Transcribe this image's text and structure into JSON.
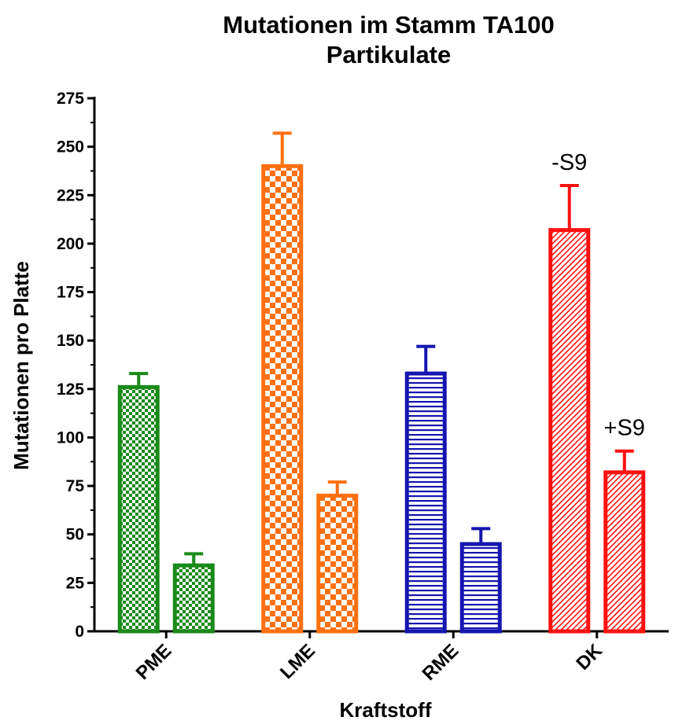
{
  "chart_data": {
    "type": "bar",
    "title": "Mutationen im Stamm TA100",
    "subtitle": "Partikulate",
    "xlabel": "Kraftstoff",
    "ylabel": "Mutationen pro Platte",
    "ylim": [
      0,
      275
    ],
    "yticks": [
      "0",
      "25",
      "50",
      "75",
      "100",
      "125",
      "150",
      "175",
      "200",
      "225",
      "250",
      "275"
    ],
    "categories": [
      "PME",
      "LME",
      "RME",
      "DK"
    ],
    "series": [
      {
        "name": "-S9",
        "values": [
          126,
          240,
          133,
          207
        ],
        "errors": [
          7,
          17,
          14,
          23
        ]
      },
      {
        "name": "+S9",
        "values": [
          34,
          70,
          45,
          82
        ],
        "errors": [
          6,
          7,
          8,
          11
        ]
      }
    ],
    "colors": [
      "#1a8a1a",
      "#ff7010",
      "#1515b0",
      "#ff1010"
    ],
    "patterns": [
      "checker-fine",
      "checker-coarse",
      "horizontal-lines",
      "diagonal-lines"
    ],
    "annotations": [
      {
        "text": "-S9",
        "category": "DK",
        "series": "-S9"
      },
      {
        "text": "+S9",
        "category": "DK",
        "series": "+S9"
      }
    ],
    "grid": false,
    "legend": "none"
  }
}
